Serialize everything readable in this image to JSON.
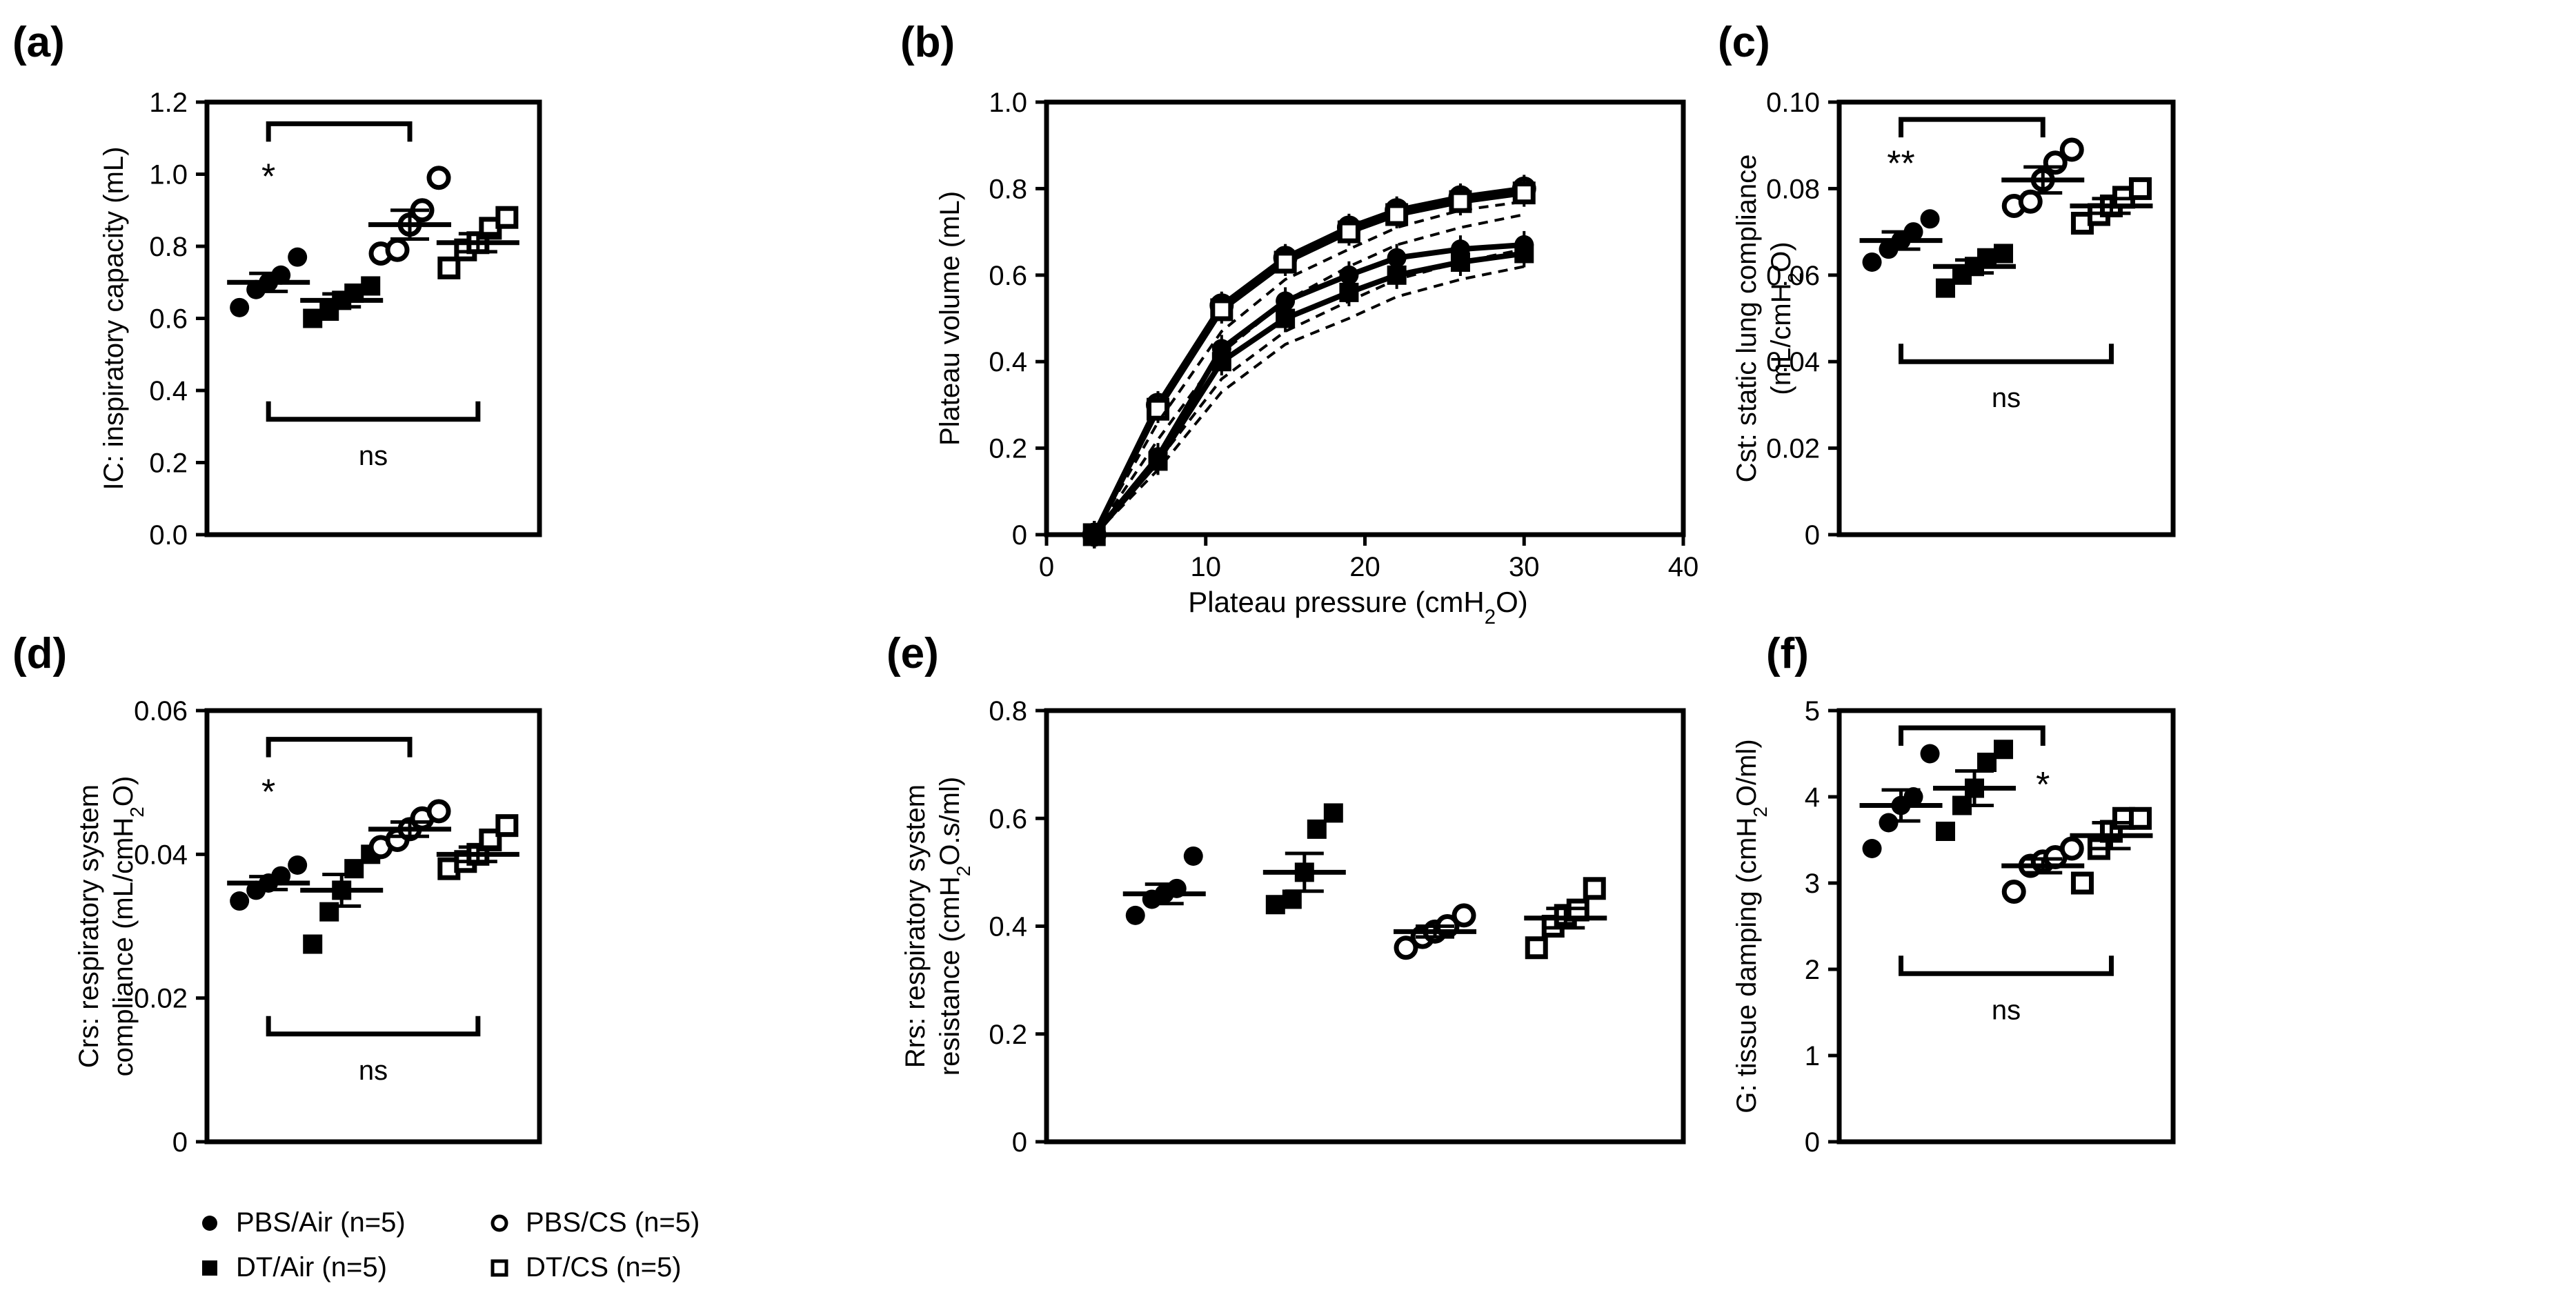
{
  "colors": {
    "ink": "#000000",
    "background": "#ffffff"
  },
  "chart_data": [
    {
      "panel": "(a)",
      "type": "scatter",
      "ylabel": "IC: inspiratory capacity (mL)",
      "ylim": [
        0,
        1.2
      ],
      "yticks": [
        "0.0",
        "0.2",
        "0.4",
        "0.6",
        "0.8",
        "1.0",
        "1.2"
      ],
      "groups": [
        {
          "name": "PBS/Air",
          "marker": "filled-circle",
          "points": [
            0.63,
            0.68,
            0.7,
            0.72,
            0.77
          ],
          "mean": 0.7,
          "sem": 0.025
        },
        {
          "name": "DT/Air",
          "marker": "filled-square",
          "points": [
            0.6,
            0.62,
            0.65,
            0.67,
            0.69
          ],
          "mean": 0.65,
          "sem": 0.018
        },
        {
          "name": "PBS/CS",
          "marker": "open-circle",
          "points": [
            0.78,
            0.79,
            0.86,
            0.9,
            0.99
          ],
          "mean": 0.86,
          "sem": 0.04
        },
        {
          "name": "DT/CS",
          "marker": "open-square",
          "points": [
            0.74,
            0.79,
            0.81,
            0.85,
            0.88
          ],
          "mean": 0.81,
          "sem": 0.025
        }
      ],
      "annotations": [
        {
          "text": "*",
          "group": 0,
          "y": 0.96
        },
        {
          "type": "bracket",
          "from": 0,
          "to": 2,
          "y": 1.14,
          "direction": "down",
          "text": ""
        },
        {
          "type": "bracket",
          "from": 0,
          "to": 3,
          "y": 0.32,
          "direction": "up",
          "text": "ns"
        }
      ]
    },
    {
      "panel": "(b)",
      "type": "line",
      "xlabel": "Plateau pressure (cmH2O)",
      "ylabel": "Plateau volume (mL)",
      "xlim": [
        0,
        40
      ],
      "ylim": [
        0,
        1.0
      ],
      "xticks": [
        "0",
        "10",
        "20",
        "30",
        "40"
      ],
      "yticks": [
        "0",
        "0.2",
        "0.4",
        "0.6",
        "0.8",
        "1.0"
      ],
      "x": [
        3,
        7,
        11,
        15,
        19,
        22,
        26,
        30
      ],
      "series": [
        {
          "name": "PBS/CS",
          "style": "solid",
          "marker": "open-circle",
          "values": [
            0,
            0.3,
            0.53,
            0.64,
            0.71,
            0.75,
            0.78,
            0.8
          ]
        },
        {
          "name": "DT/CS",
          "style": "solid",
          "marker": "open-square",
          "values": [
            0,
            0.29,
            0.52,
            0.63,
            0.7,
            0.74,
            0.77,
            0.79
          ]
        },
        {
          "name": "PBS/Air",
          "style": "solid",
          "marker": "filled-circle",
          "values": [
            0,
            0.18,
            0.43,
            0.54,
            0.6,
            0.64,
            0.66,
            0.67
          ]
        },
        {
          "name": "DT/Air",
          "style": "solid",
          "marker": "filled-square",
          "values": [
            0,
            0.17,
            0.4,
            0.5,
            0.56,
            0.6,
            0.63,
            0.65
          ]
        },
        {
          "name": "fit-1",
          "style": "dashed",
          "marker": "none",
          "values": [
            0,
            0.26,
            0.47,
            0.59,
            0.66,
            0.71,
            0.75,
            0.77
          ]
        },
        {
          "name": "fit-2",
          "style": "dashed",
          "marker": "none",
          "values": [
            0,
            0.22,
            0.42,
            0.54,
            0.62,
            0.67,
            0.71,
            0.74
          ]
        },
        {
          "name": "fit-3",
          "style": "dashed",
          "marker": "none",
          "values": [
            0,
            0.17,
            0.36,
            0.47,
            0.54,
            0.59,
            0.63,
            0.66
          ]
        },
        {
          "name": "fit-4",
          "style": "dashed",
          "marker": "none",
          "values": [
            0,
            0.15,
            0.33,
            0.44,
            0.5,
            0.55,
            0.59,
            0.62
          ]
        }
      ]
    },
    {
      "panel": "(c)",
      "type": "scatter",
      "ylabel": "Cst: static lung compliance (mL/cmH2O)",
      "ylim": [
        0,
        0.1
      ],
      "yticks": [
        "0",
        "0.02",
        "0.04",
        "0.06",
        "0.08",
        "0.10"
      ],
      "groups": [
        {
          "name": "PBS/Air",
          "marker": "filled-circle",
          "points": [
            0.063,
            0.066,
            0.068,
            0.07,
            0.073
          ],
          "mean": 0.068,
          "sem": 0.002
        },
        {
          "name": "DT/Air",
          "marker": "filled-square",
          "points": [
            0.057,
            0.06,
            0.062,
            0.064,
            0.065
          ],
          "mean": 0.062,
          "sem": 0.0015
        },
        {
          "name": "PBS/CS",
          "marker": "open-circle",
          "points": [
            0.076,
            0.077,
            0.082,
            0.086,
            0.089
          ],
          "mean": 0.082,
          "sem": 0.003
        },
        {
          "name": "DT/CS",
          "marker": "open-square",
          "points": [
            0.072,
            0.074,
            0.076,
            0.078,
            0.08
          ],
          "mean": 0.076,
          "sem": 0.0017
        }
      ],
      "annotations": [
        {
          "text": "**",
          "group": 0,
          "y": 0.083
        },
        {
          "type": "bracket",
          "from": 0,
          "to": 2,
          "y": 0.096,
          "direction": "down",
          "text": ""
        },
        {
          "type": "bracket",
          "from": 0,
          "to": 3,
          "y": 0.04,
          "direction": "up",
          "text": "ns"
        }
      ]
    },
    {
      "panel": "(d)",
      "type": "scatter",
      "ylabel": "Crs: respiratory system compliance (mL/cmH2O)",
      "ylim": [
        0,
        0.06
      ],
      "yticks": [
        "0",
        "0.02",
        "0.04",
        "0.06"
      ],
      "groups": [
        {
          "name": "PBS/Air",
          "marker": "filled-circle",
          "points": [
            0.0335,
            0.035,
            0.036,
            0.037,
            0.0385
          ],
          "mean": 0.036,
          "sem": 0.0009
        },
        {
          "name": "DT/Air",
          "marker": "filled-square",
          "points": [
            0.0275,
            0.032,
            0.035,
            0.038,
            0.04
          ],
          "mean": 0.035,
          "sem": 0.0022
        },
        {
          "name": "PBS/CS",
          "marker": "open-circle",
          "points": [
            0.041,
            0.042,
            0.0435,
            0.045,
            0.046
          ],
          "mean": 0.0435,
          "sem": 0.001
        },
        {
          "name": "DT/CS",
          "marker": "open-square",
          "points": [
            0.038,
            0.039,
            0.04,
            0.042,
            0.044
          ],
          "mean": 0.04,
          "sem": 0.001
        }
      ],
      "annotations": [
        {
          "text": "*",
          "group": 0,
          "y": 0.047
        },
        {
          "type": "bracket",
          "from": 0,
          "to": 2,
          "y": 0.056,
          "direction": "down",
          "text": ""
        },
        {
          "type": "bracket",
          "from": 0,
          "to": 3,
          "y": 0.015,
          "direction": "up",
          "text": "ns"
        }
      ]
    },
    {
      "panel": "(e)",
      "type": "scatter",
      "ylabel": "Rrs: respiratory system resistance (cmH2O.s/ml)",
      "ylim": [
        0,
        0.8
      ],
      "yticks": [
        "0",
        "0.2",
        "0.4",
        "0.6",
        "0.8"
      ],
      "groups": [
        {
          "name": "PBS/Air",
          "marker": "filled-circle",
          "points": [
            0.42,
            0.45,
            0.46,
            0.47,
            0.53
          ],
          "mean": 0.46,
          "sem": 0.018
        },
        {
          "name": "DT/Air",
          "marker": "filled-square",
          "points": [
            0.44,
            0.45,
            0.5,
            0.58,
            0.61
          ],
          "mean": 0.5,
          "sem": 0.035
        },
        {
          "name": "PBS/CS",
          "marker": "open-circle",
          "points": [
            0.36,
            0.38,
            0.39,
            0.4,
            0.42
          ],
          "mean": 0.39,
          "sem": 0.01
        },
        {
          "name": "DT/CS",
          "marker": "open-square",
          "points": [
            0.36,
            0.4,
            0.42,
            0.43,
            0.47
          ],
          "mean": 0.415,
          "sem": 0.018
        }
      ],
      "annotations": []
    },
    {
      "panel": "(f)",
      "type": "scatter",
      "ylabel": "G: tissue damping (cmH2O/ml)",
      "ylim": [
        0,
        5
      ],
      "yticks": [
        "0",
        "1",
        "2",
        "3",
        "4",
        "5"
      ],
      "groups": [
        {
          "name": "PBS/Air",
          "marker": "filled-circle",
          "points": [
            3.4,
            3.7,
            3.9,
            4.0,
            4.5
          ],
          "mean": 3.9,
          "sem": 0.18
        },
        {
          "name": "DT/Air",
          "marker": "filled-square",
          "points": [
            3.6,
            3.9,
            4.1,
            4.4,
            4.55
          ],
          "mean": 4.1,
          "sem": 0.2
        },
        {
          "name": "PBS/CS",
          "marker": "open-circle",
          "points": [
            2.9,
            3.2,
            3.25,
            3.3,
            3.4
          ],
          "mean": 3.2,
          "sem": 0.08
        },
        {
          "name": "DT/CS",
          "marker": "open-square",
          "points": [
            3.0,
            3.4,
            3.6,
            3.75,
            3.75
          ],
          "mean": 3.55,
          "sem": 0.15
        }
      ],
      "annotations": [
        {
          "text": "*",
          "group": 2,
          "y": 4.0
        },
        {
          "type": "bracket",
          "from": 0,
          "to": 2,
          "y": 4.8,
          "direction": "down",
          "text": ""
        },
        {
          "type": "bracket",
          "from": 0,
          "to": 3,
          "y": 1.95,
          "direction": "up",
          "text": "ns"
        }
      ]
    }
  ],
  "legend": [
    {
      "marker": "filled-circle",
      "label": "PBS/Air (n=5)"
    },
    {
      "marker": "open-circle",
      "label": "PBS/CS (n=5)"
    },
    {
      "marker": "filled-square",
      "label": "DT/Air (n=5)"
    },
    {
      "marker": "open-square",
      "label": "DT/CS (n=5)"
    }
  ]
}
